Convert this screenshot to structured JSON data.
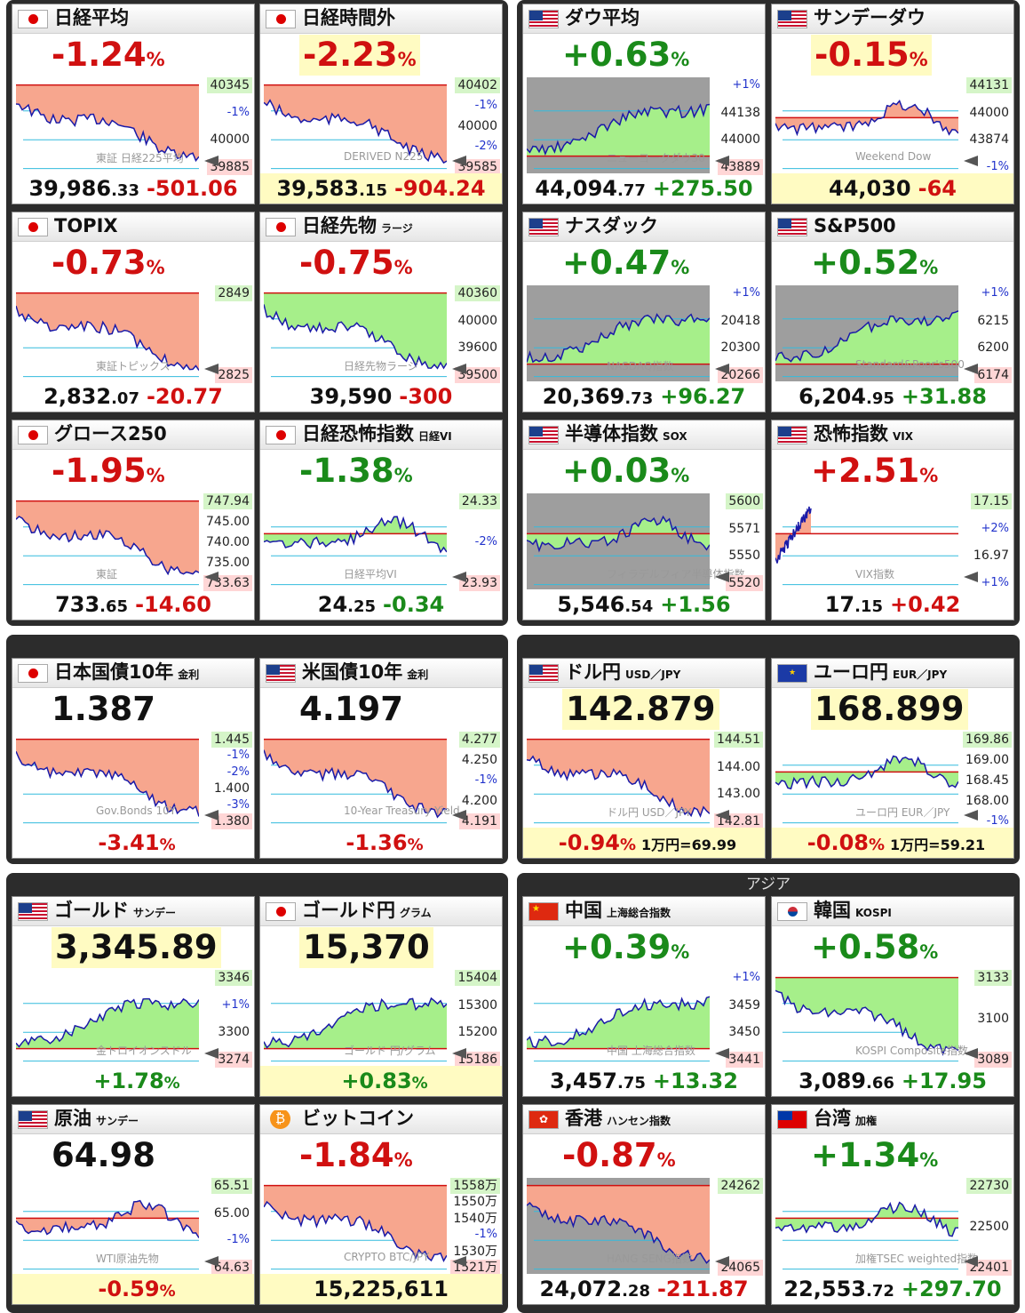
{
  "sections": {
    "asia_title": "アジア"
  },
  "panels": [
    {
      "id": "nikkei",
      "flag": "jp",
      "title": "日経平均",
      "subtitle": "",
      "main": "-1.24",
      "main_unit": "%",
      "main_color": "red",
      "main_hl": false,
      "chart_fill": "red",
      "chart_bg": false,
      "chart_shape": "down",
      "labels_right": [
        "40345",
        "-1%",
        "40000",
        "39885"
      ],
      "watermark": "東証 日経225平均",
      "bottom_int": "39,986",
      "bottom_dec": ".33",
      "bottom_chg": "-501.06",
      "bottom_chg_color": "red",
      "bottom_yel": false,
      "extra": ""
    },
    {
      "id": "nikkei_after",
      "flag": "jp",
      "title": "日経時間外",
      "subtitle": "",
      "main": "-2.23",
      "main_unit": "%",
      "main_color": "red",
      "main_hl": true,
      "chart_fill": "red",
      "chart_bg": false,
      "chart_shape": "down",
      "labels_right": [
        "40402",
        "-1%",
        "40000",
        "-2%",
        "39585"
      ],
      "watermark": "DERIVED N225",
      "bottom_int": "39,583",
      "bottom_dec": ".15",
      "bottom_chg": "-904.24",
      "bottom_chg_color": "red",
      "bottom_yel": true,
      "extra": ""
    },
    {
      "id": "dow",
      "flag": "us",
      "title": "ダウ平均",
      "subtitle": "",
      "main": "+0.63",
      "main_unit": "%",
      "main_color": "grn",
      "main_hl": false,
      "chart_fill": "grn",
      "chart_bg": true,
      "chart_shape": "up",
      "labels_right": [
        "+1%",
        "44138",
        "44000",
        "43889"
      ],
      "watermark": "ニューヨークダウ30",
      "bottom_int": "44,094",
      "bottom_dec": ".77",
      "bottom_chg": "+275.50",
      "bottom_chg_color": "grn",
      "bottom_yel": false,
      "extra": ""
    },
    {
      "id": "sunday_dow",
      "flag": "us",
      "title": "サンデーダウ",
      "subtitle": "",
      "main": "-0.15",
      "main_unit": "%",
      "main_color": "red",
      "main_hl": true,
      "chart_fill": "red",
      "chart_bg": false,
      "chart_shape": "flat",
      "labels_right": [
        "44131",
        "44000",
        "43874",
        "-1%"
      ],
      "watermark": "Weekend Dow",
      "bottom_int": "44,030",
      "bottom_dec": "",
      "bottom_chg": "-64",
      "bottom_chg_color": "red",
      "bottom_yel": true,
      "extra": ""
    },
    {
      "id": "topix",
      "flag": "jp",
      "title": "TOPIX",
      "subtitle": "",
      "main": "-0.73",
      "main_unit": "%",
      "main_color": "red",
      "main_hl": false,
      "chart_fill": "red",
      "chart_bg": false,
      "chart_shape": "down",
      "labels_right": [
        "2849",
        "2825"
      ],
      "watermark": "東証トピックス",
      "bottom_int": "2,832",
      "bottom_dec": ".07",
      "bottom_chg": "-20.77",
      "bottom_chg_color": "red",
      "bottom_yel": false,
      "extra": ""
    },
    {
      "id": "nikkei_fut",
      "flag": "jp",
      "title": "日経先物",
      "subtitle": "ラージ",
      "main": "-0.75",
      "main_unit": "%",
      "main_color": "red",
      "main_hl": false,
      "chart_fill": "grn",
      "chart_bg": false,
      "chart_shape": "down",
      "labels_right": [
        "40360",
        "40000",
        "39600",
        "39500"
      ],
      "watermark": "日経先物ラージ",
      "bottom_int": "39,590",
      "bottom_dec": "",
      "bottom_chg": "-300",
      "bottom_chg_color": "red",
      "bottom_yel": false,
      "extra": ""
    },
    {
      "id": "nasdaq",
      "flag": "us",
      "title": "ナスダック",
      "subtitle": "",
      "main": "+0.47",
      "main_unit": "%",
      "main_color": "grn",
      "main_hl": false,
      "chart_fill": "grn",
      "chart_bg": true,
      "chart_shape": "up",
      "labels_right": [
        "+1%",
        "20418",
        "20300",
        "20266"
      ],
      "watermark": "NASDAQ指数",
      "bottom_int": "20,369",
      "bottom_dec": ".73",
      "bottom_chg": "+96.27",
      "bottom_chg_color": "grn",
      "bottom_yel": false,
      "extra": ""
    },
    {
      "id": "sp500",
      "flag": "us",
      "title": "S&P500",
      "subtitle": "",
      "main": "+0.52",
      "main_unit": "%",
      "main_color": "grn",
      "main_hl": false,
      "chart_fill": "grn",
      "chart_bg": true,
      "chart_shape": "up",
      "labels_right": [
        "+1%",
        "6215",
        "6200",
        "6174"
      ],
      "watermark": "Standard&Poor's500",
      "bottom_int": "6,204",
      "bottom_dec": ".95",
      "bottom_chg": "+31.88",
      "bottom_chg_color": "grn",
      "bottom_yel": false,
      "extra": ""
    },
    {
      "id": "growth250",
      "flag": "jp",
      "title": "グロース250",
      "subtitle": "",
      "main": "-1.95",
      "main_unit": "%",
      "main_color": "red",
      "main_hl": false,
      "chart_fill": "red",
      "chart_bg": false,
      "chart_shape": "down",
      "labels_right": [
        "747.94",
        "745.00",
        "740.00",
        "735.00",
        "733.63"
      ],
      "watermark": "東証",
      "bottom_int": "733",
      "bottom_dec": ".65",
      "bottom_chg": "-14.60",
      "bottom_chg_color": "red",
      "bottom_yel": false,
      "extra": ""
    },
    {
      "id": "nikkei_vi",
      "flag": "jp",
      "title": "日経恐怖指数",
      "subtitle": "日経VI",
      "main": "-1.38",
      "main_unit": "%",
      "main_color": "grn",
      "main_hl": false,
      "chart_fill": "grn",
      "chart_bg": false,
      "chart_shape": "flat",
      "labels_right": [
        "24.33",
        "-2%",
        "23.93"
      ],
      "watermark": "日経平均VI",
      "bottom_int": "24",
      "bottom_dec": ".25",
      "bottom_chg": "-0.34",
      "bottom_chg_color": "grn",
      "bottom_yel": false,
      "extra": ""
    },
    {
      "id": "sox",
      "flag": "us",
      "title": "半導体指数",
      "subtitle": "SOX",
      "main": "+0.03",
      "main_unit": "%",
      "main_color": "grn",
      "main_hl": false,
      "chart_fill": "grn",
      "chart_bg": true,
      "chart_shape": "flat",
      "labels_right": [
        "5600",
        "5571",
        "5550",
        "5520"
      ],
      "watermark": "フィラデルフィア半導体指数",
      "bottom_int": "5,546",
      "bottom_dec": ".54",
      "bottom_chg": "+1.56",
      "bottom_chg_color": "grn",
      "bottom_yel": false,
      "extra": ""
    },
    {
      "id": "vix",
      "flag": "us",
      "title": "恐怖指数",
      "subtitle": "VIX",
      "main": "+2.51",
      "main_unit": "%",
      "main_color": "red",
      "main_hl": false,
      "chart_fill": "red",
      "chart_bg": false,
      "chart_shape": "shortup",
      "labels_right": [
        "17.15",
        "+2%",
        "16.97",
        "+1%"
      ],
      "watermark": "VIX指数",
      "bottom_int": "17",
      "bottom_dec": ".15",
      "bottom_chg": "+0.42",
      "bottom_chg_color": "red",
      "bottom_yel": false,
      "extra": ""
    },
    {
      "id": "jgb10",
      "flag": "jp",
      "title": "日本国債10年",
      "subtitle": "金利",
      "main": "1.387",
      "main_unit": "",
      "main_color": "blk",
      "main_hl": false,
      "chart_fill": "red",
      "chart_bg": false,
      "chart_shape": "down",
      "labels_right": [
        "1.445",
        "-1%",
        "-2%",
        "1.400",
        "-3%",
        "1.380"
      ],
      "watermark": "Gov.Bonds 10Y",
      "bottom_int": "",
      "bottom_dec": "",
      "bottom_chg": "-3.41",
      "bottom_chg_unit": "%",
      "bottom_chg_color": "red",
      "bottom_yel": false,
      "extra": ""
    },
    {
      "id": "ust10",
      "flag": "us",
      "title": "米国債10年",
      "subtitle": "金利",
      "main": "4.197",
      "main_unit": "",
      "main_color": "blk",
      "main_hl": false,
      "chart_fill": "red",
      "chart_bg": false,
      "chart_shape": "down",
      "labels_right": [
        "4.277",
        "4.250",
        "-1%",
        "4.200",
        "4.191"
      ],
      "watermark": "10-Year Treasury Yield",
      "bottom_int": "",
      "bottom_dec": "",
      "bottom_chg": "-1.36",
      "bottom_chg_unit": "%",
      "bottom_chg_color": "red",
      "bottom_yel": false,
      "extra": ""
    },
    {
      "id": "usdjpy",
      "flag": "us",
      "title": "ドル円",
      "subtitle": "USD／JPY",
      "main": "142.879",
      "main_unit": "",
      "main_color": "blk",
      "main_hl": true,
      "chart_fill": "red",
      "chart_bg": false,
      "chart_shape": "down",
      "labels_right": [
        "144.51",
        "144.00",
        "143.00",
        "142.81"
      ],
      "watermark": "ドル円 USD／JPY",
      "bottom_int": "",
      "bottom_dec": "",
      "bottom_chg": "-0.94",
      "bottom_chg_unit": "%",
      "bottom_chg_color": "red",
      "bottom_yel": true,
      "extra": "1万円=69.99"
    },
    {
      "id": "eurjpy",
      "flag": "eu",
      "title": "ユーロ円",
      "subtitle": "EUR／JPY",
      "main": "168.899",
      "main_unit": "",
      "main_color": "blk",
      "main_hl": true,
      "chart_fill": "grn",
      "chart_bg": false,
      "chart_shape": "flat",
      "labels_right": [
        "169.86",
        "169.00",
        "168.45",
        "168.00",
        "-1%"
      ],
      "watermark": "ユーロ円 EUR／JPY",
      "bottom_int": "",
      "bottom_dec": "",
      "bottom_chg": "-0.08",
      "bottom_chg_unit": "%",
      "bottom_chg_color": "red",
      "bottom_yel": true,
      "extra": "1万円=59.21"
    },
    {
      "id": "gold",
      "flag": "us",
      "title": "ゴールド",
      "subtitle": "サンデー",
      "main": "3,345.89",
      "main_unit": "",
      "main_color": "blk",
      "main_hl": true,
      "chart_fill": "grn",
      "chart_bg": false,
      "chart_shape": "up",
      "labels_right": [
        "3346",
        "+1%",
        "3300",
        "3274"
      ],
      "watermark": "金トロイオンスドル",
      "bottom_int": "",
      "bottom_dec": "",
      "bottom_chg": "+1.78",
      "bottom_chg_unit": "%",
      "bottom_chg_color": "grn",
      "bottom_yel": false,
      "extra": ""
    },
    {
      "id": "gold_yen",
      "flag": "jp",
      "title": "ゴールド円",
      "subtitle": "グラム",
      "main": "15,370",
      "main_unit": "",
      "main_color": "blk",
      "main_hl": true,
      "chart_fill": "grn",
      "chart_bg": false,
      "chart_shape": "up",
      "labels_right": [
        "15404",
        "15300",
        "15200",
        "15186"
      ],
      "watermark": "ゴールド 円/グラム",
      "bottom_int": "",
      "bottom_dec": "",
      "bottom_chg": "+0.83",
      "bottom_chg_unit": "%",
      "bottom_chg_color": "grn",
      "bottom_yel": true,
      "extra": ""
    },
    {
      "id": "china",
      "flag": "cn",
      "title": "中国",
      "subtitle": "上海総合指数",
      "main": "+0.39",
      "main_unit": "%",
      "main_color": "grn",
      "main_hl": false,
      "chart_fill": "grn",
      "chart_bg": false,
      "chart_shape": "up",
      "labels_right": [
        "+1%",
        "3459",
        "3450",
        "3441"
      ],
      "watermark": "中国 上海総合指数",
      "bottom_int": "3,457",
      "bottom_dec": ".75",
      "bottom_chg": "+13.32",
      "bottom_chg_color": "grn",
      "bottom_yel": false,
      "extra": ""
    },
    {
      "id": "korea",
      "flag": "kr",
      "title": "韓国",
      "subtitle": "KOSPI",
      "main": "+0.58",
      "main_unit": "%",
      "main_color": "grn",
      "main_hl": false,
      "chart_fill": "grn",
      "chart_bg": false,
      "chart_shape": "down",
      "labels_right": [
        "3133",
        "3100",
        "3089"
      ],
      "watermark": "KOSPI Composite指数",
      "bottom_int": "3,089",
      "bottom_dec": ".66",
      "bottom_chg": "+17.95",
      "bottom_chg_color": "grn",
      "bottom_yel": false,
      "extra": ""
    },
    {
      "id": "oil",
      "flag": "us",
      "title": "原油",
      "subtitle": "サンデー",
      "main": "64.98",
      "main_unit": "",
      "main_color": "blk",
      "main_hl": false,
      "chart_fill": "red",
      "chart_bg": false,
      "chart_shape": "flat",
      "labels_right": [
        "65.51",
        "65.00",
        "-1%",
        "64.63"
      ],
      "watermark": "WTI原油先物",
      "bottom_int": "",
      "bottom_dec": "",
      "bottom_chg": "-0.59",
      "bottom_chg_unit": "%",
      "bottom_chg_color": "red",
      "bottom_yel": true,
      "extra": ""
    },
    {
      "id": "bitcoin",
      "flag": "btc",
      "title": "ビットコイン",
      "subtitle": "",
      "main": "-1.84",
      "main_unit": "%",
      "main_color": "red",
      "main_hl": false,
      "chart_fill": "red",
      "chart_bg": false,
      "chart_shape": "down",
      "labels_right": [
        "1558万",
        "1550万",
        "1540万",
        "-1%",
        "1530万",
        "1521万"
      ],
      "watermark": "CRYPTO BTC/JPY",
      "bottom_int": "15,225,611",
      "bottom_dec": "",
      "bottom_chg": "",
      "bottom_chg_color": "blk",
      "bottom_yel": true,
      "extra": ""
    },
    {
      "id": "hongkong",
      "flag": "hk",
      "title": "香港",
      "subtitle": "ハンセン指数",
      "main": "-0.87",
      "main_unit": "%",
      "main_color": "red",
      "main_hl": false,
      "chart_fill": "red",
      "chart_bg": true,
      "chart_shape": "down",
      "labels_right": [
        "24262",
        "24065"
      ],
      "watermark": "HANG SENG指数",
      "bottom_int": "24,072",
      "bottom_dec": ".28",
      "bottom_chg": "-211.87",
      "bottom_chg_color": "red",
      "bottom_yel": false,
      "extra": ""
    },
    {
      "id": "taiwan",
      "flag": "tw",
      "title": "台湾",
      "subtitle": "加権",
      "main": "+1.34",
      "main_unit": "%",
      "main_color": "grn",
      "main_hl": false,
      "chart_fill": "grn",
      "chart_bg": false,
      "chart_shape": "flat",
      "labels_right": [
        "22730",
        "22500",
        "22401"
      ],
      "watermark": "加権TSEC weighted指数",
      "bottom_int": "22,553",
      "bottom_dec": ".72",
      "bottom_chg": "+297.70",
      "bottom_chg_color": "grn",
      "bottom_yel": false,
      "extra": ""
    }
  ]
}
